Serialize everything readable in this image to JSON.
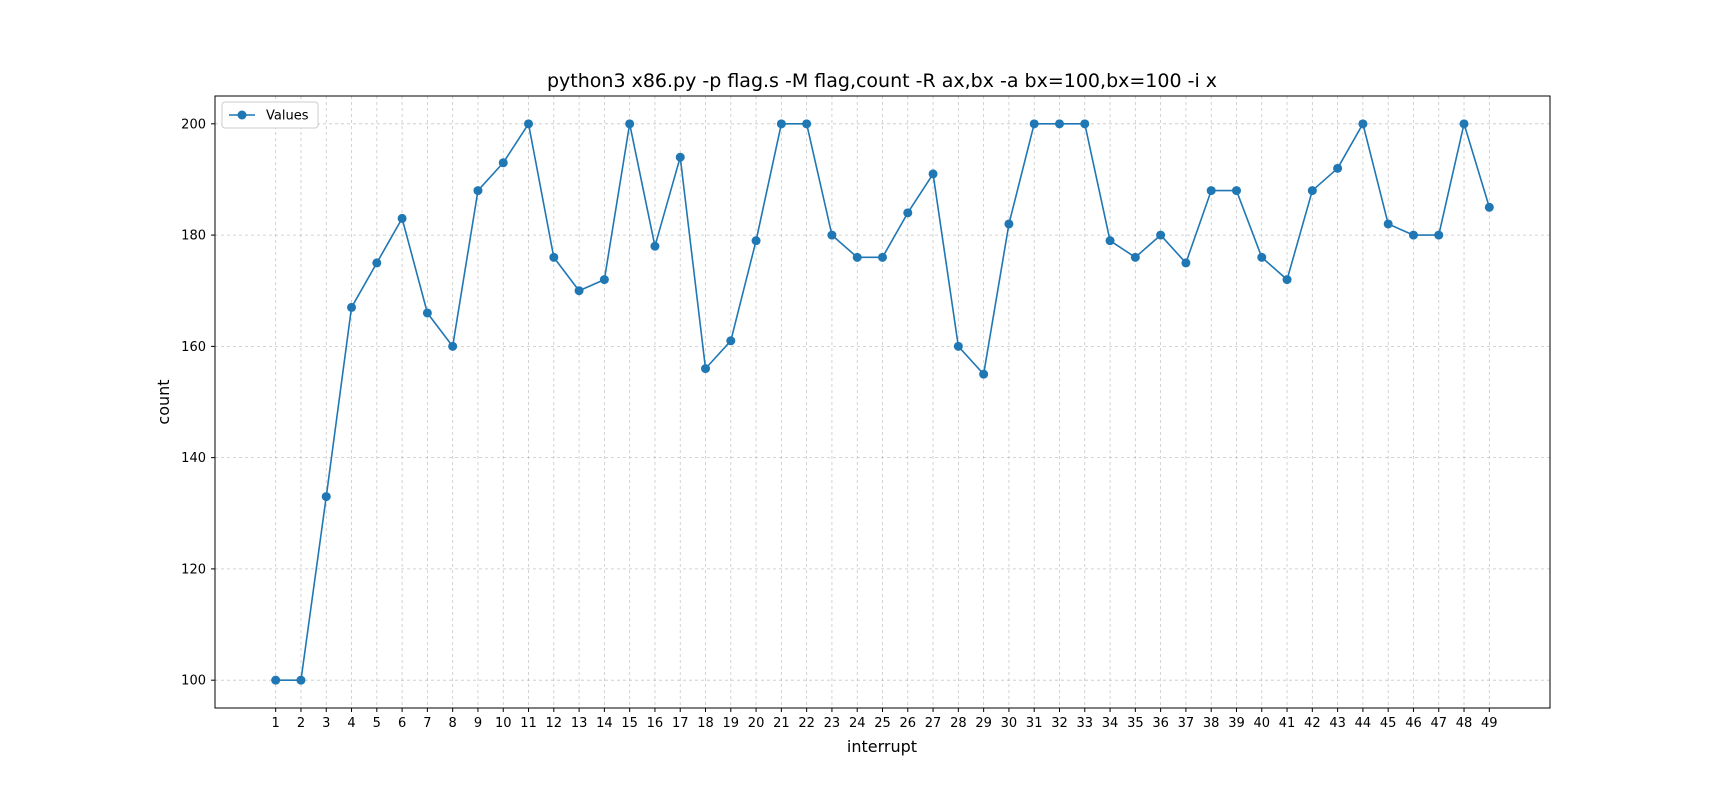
{
  "chart_data": {
    "type": "line",
    "title": "python3 x86.py -p flag.s -M flag,count -R ax,bx -a bx=100,bx=100 -i x",
    "xlabel": "interrupt",
    "ylabel": "count",
    "x": [
      1,
      2,
      3,
      4,
      5,
      6,
      7,
      8,
      9,
      10,
      11,
      12,
      13,
      14,
      15,
      16,
      17,
      18,
      19,
      20,
      21,
      22,
      23,
      24,
      25,
      26,
      27,
      28,
      29,
      30,
      31,
      32,
      33,
      34,
      35,
      36,
      37,
      38,
      39,
      40,
      41,
      42,
      43,
      44,
      45,
      46,
      47,
      48,
      49
    ],
    "series": [
      {
        "name": "Values",
        "marker": "circle",
        "values": [
          100,
          100,
          133,
          167,
          175,
          183,
          166,
          160,
          188,
          193,
          200,
          176,
          170,
          172,
          200,
          178,
          194,
          156,
          161,
          179,
          200,
          200,
          180,
          176,
          176,
          184,
          191,
          160,
          155,
          182,
          200,
          200,
          200,
          179,
          176,
          180,
          175,
          188,
          188,
          176,
          172,
          188,
          192,
          200,
          182,
          180,
          180,
          200,
          185
        ]
      }
    ],
    "xlim": [
      -1.4,
      51.4
    ],
    "ylim": [
      95,
      205
    ],
    "yticks": [
      100,
      120,
      140,
      160,
      180,
      200
    ],
    "grid": true,
    "legend_position": "upper-left",
    "colors": {
      "line": "#1f77b4",
      "grid": "#b0b0b0",
      "frame": "#000000"
    }
  }
}
